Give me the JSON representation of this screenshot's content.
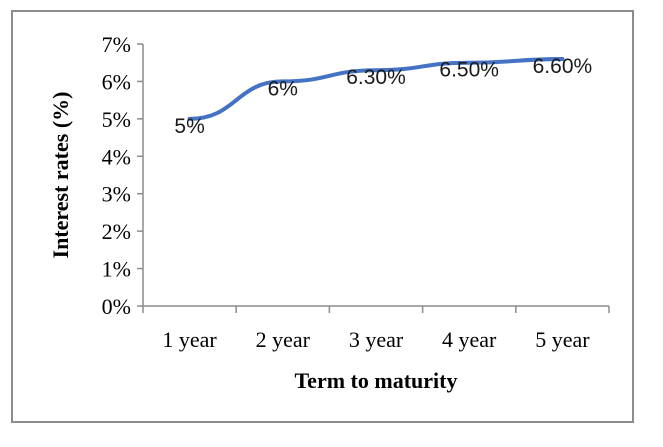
{
  "chart_data": {
    "type": "line",
    "title": "",
    "xlabel": "Term to maturity",
    "ylabel": "Interest rates (%)",
    "categories": [
      "1 year",
      "2 year",
      "3 year",
      "4 year",
      "5 year"
    ],
    "series": [
      {
        "values": [
          5,
          6,
          6.3,
          6.5,
          6.6
        ],
        "data_labels": [
          "5%",
          "6%",
          "6.30%",
          "6.50%",
          "6.60%"
        ],
        "color": "#4472c4"
      }
    ],
    "ylim": [
      0,
      7
    ],
    "y_ticks": [
      "0%",
      "1%",
      "2%",
      "3%",
      "4%",
      "5%",
      "6%",
      "7%"
    ],
    "grid": false,
    "legend": "none"
  }
}
